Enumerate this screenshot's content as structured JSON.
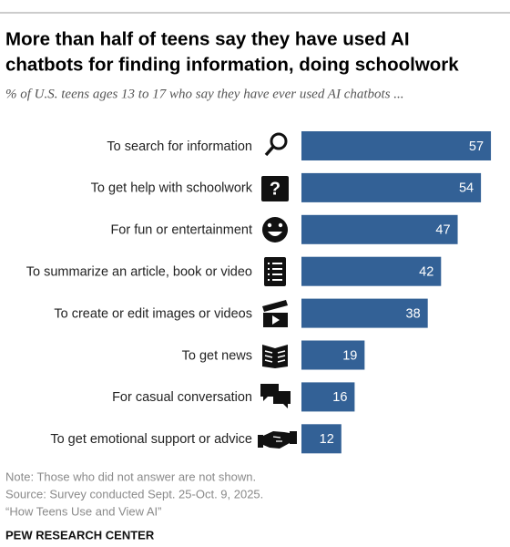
{
  "chart_data": {
    "type": "bar",
    "orientation": "horizontal",
    "title": [
      "More than half of teens say they have used AI",
      "chatbots for finding information, doing schoolwork"
    ],
    "subtitle": "% of U.S. teens ages 13 to 17 who say they have ever used AI chatbots ...",
    "categories": [
      "To search for information",
      "To get help with schoolwork",
      "For fun or entertainment",
      "To summarize an article, book or video",
      "To create or edit images or videos",
      "To get news",
      "For casual conversation",
      "To get emotional support or advice"
    ],
    "values": [
      57,
      54,
      47,
      42,
      38,
      19,
      16,
      12
    ],
    "color": "#336196",
    "notes": [
      "Note: Those who did not answer are not shown.",
      "Source: Survey conducted Sept. 25-Oct. 9, 2025.",
      "“How Teens Use and View AI”"
    ],
    "source": "PEW RESEARCH CENTER"
  }
}
